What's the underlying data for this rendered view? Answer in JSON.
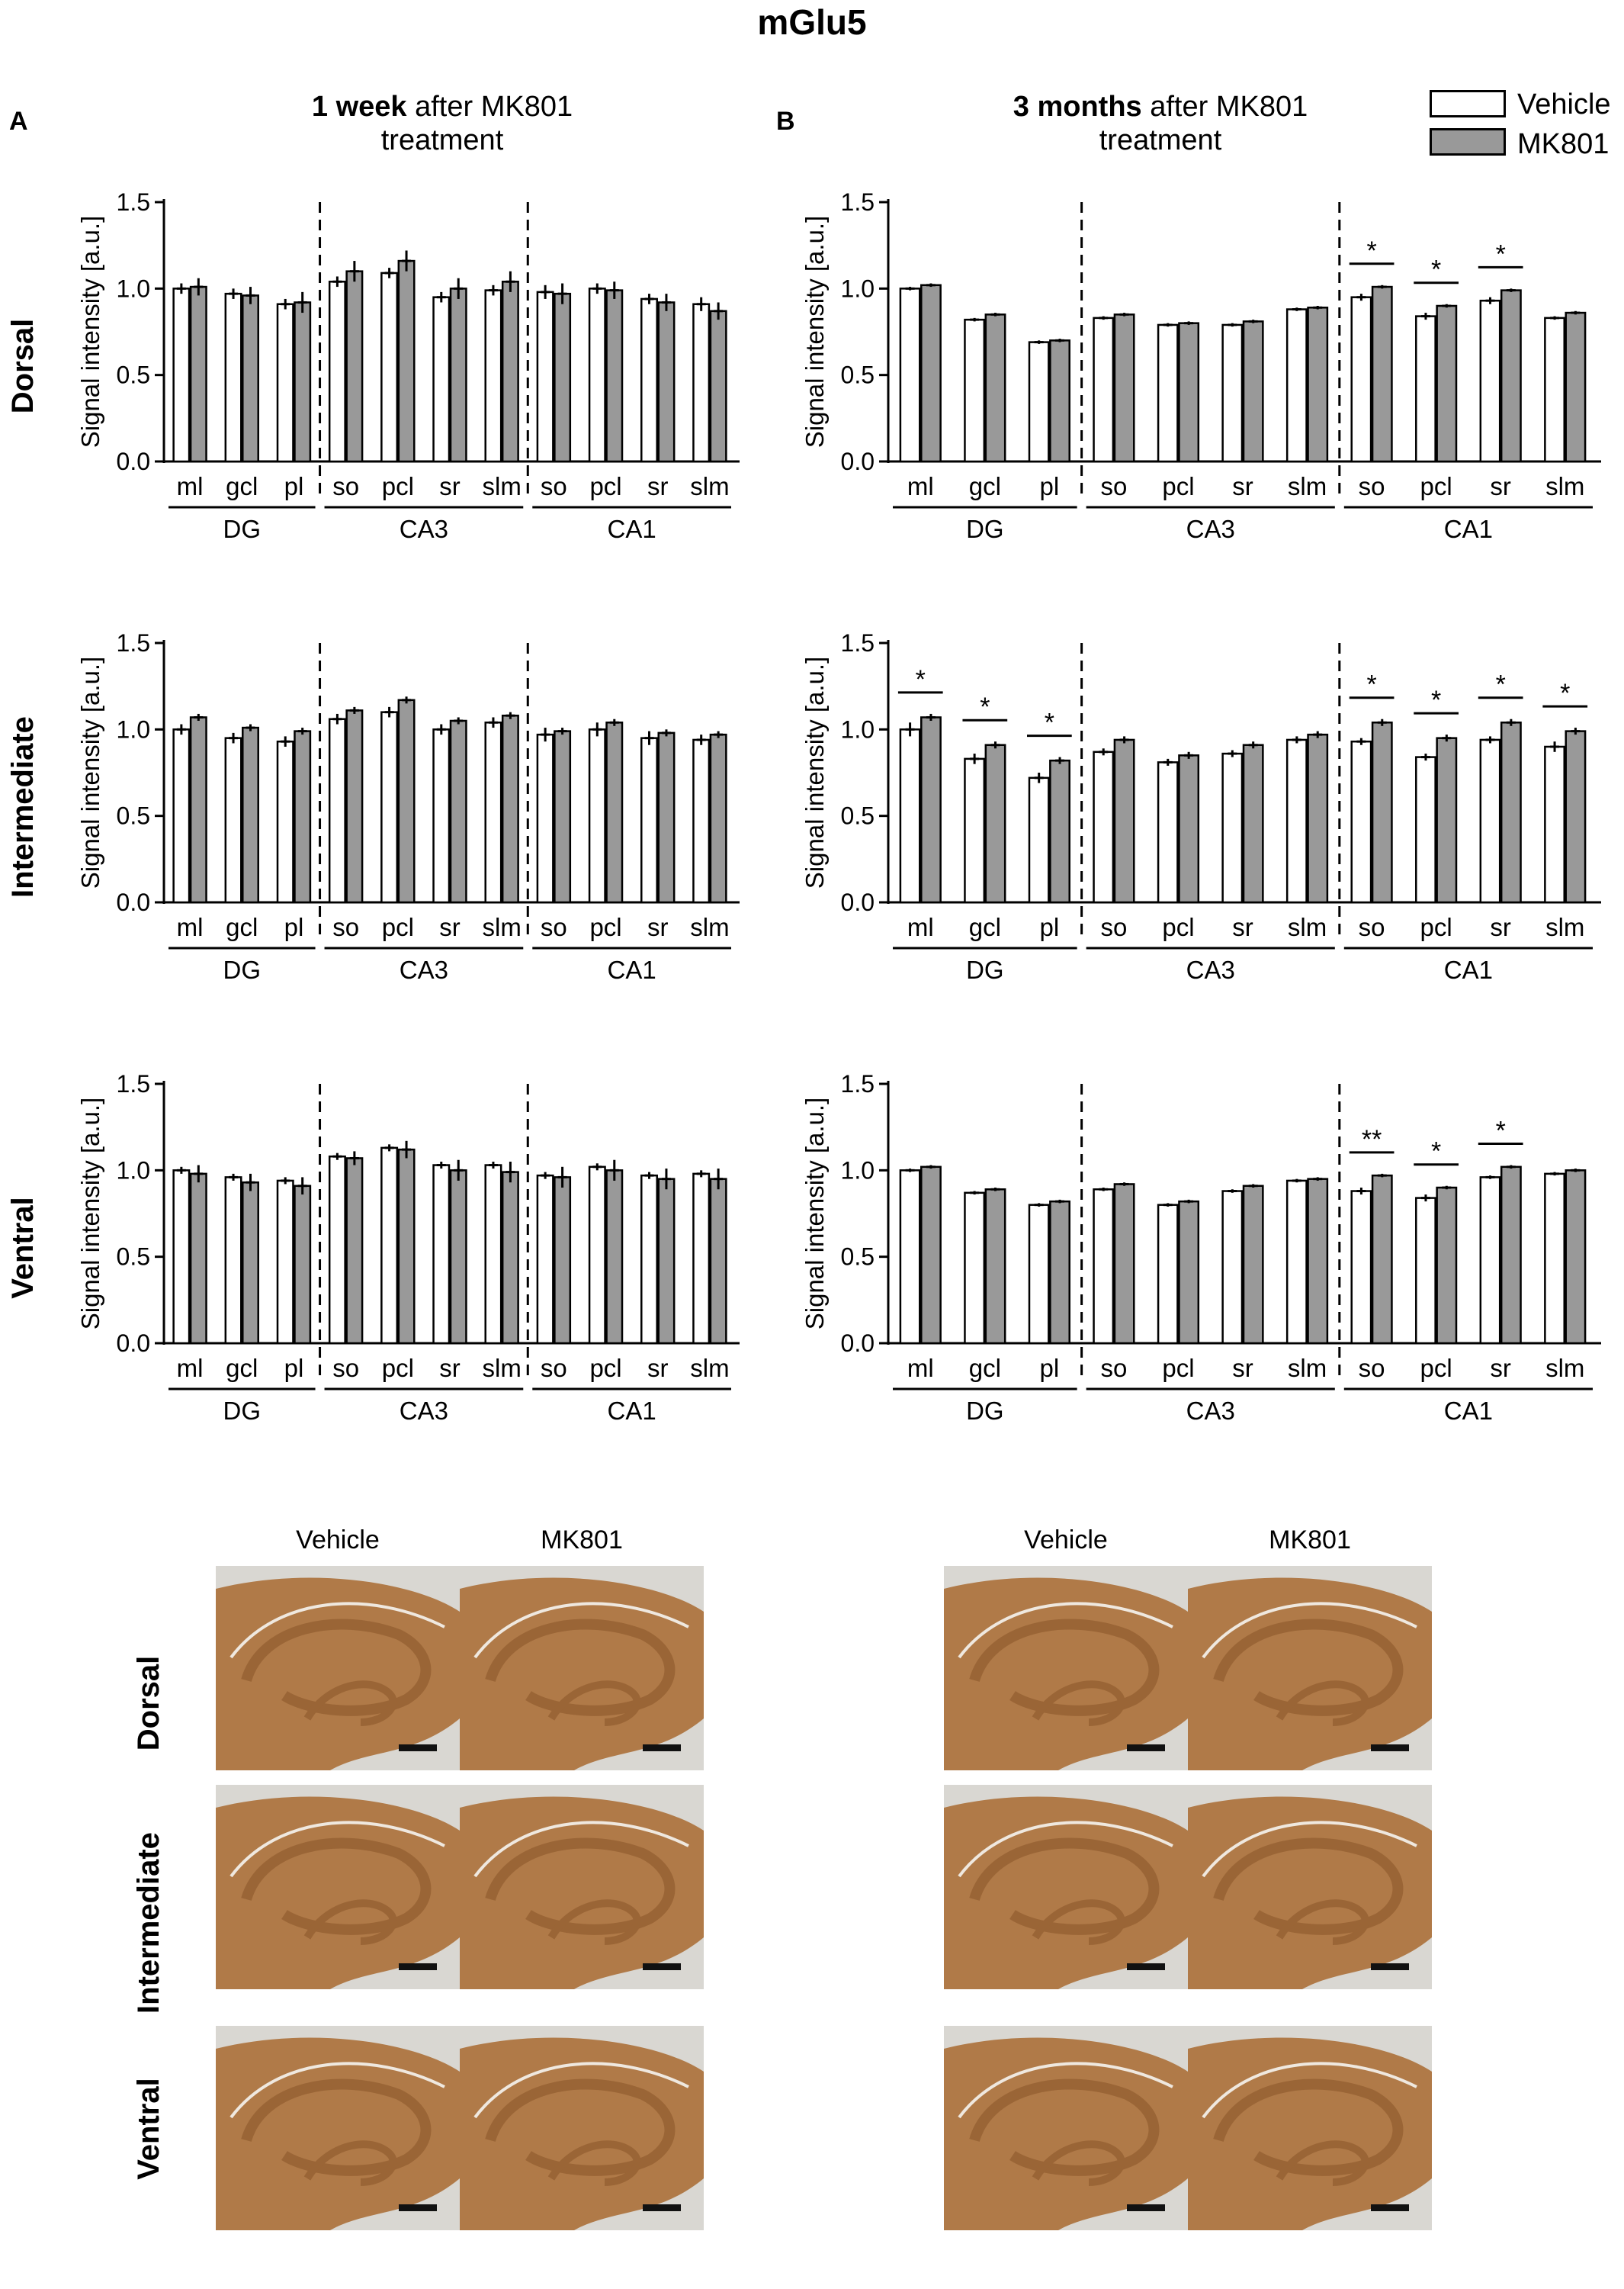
{
  "figure": {
    "title": "mGlu5",
    "panels": [
      {
        "letter": "A",
        "title_bold": "1 week",
        "title_rest": " after MK801",
        "title_line2": "treatment"
      },
      {
        "letter": "B",
        "title_bold": "3 months",
        "title_rest": " after MK801",
        "title_line2": "treatment"
      }
    ],
    "legend": {
      "vehicle": "Vehicle",
      "mk801": "MK801"
    },
    "row_labels": [
      "Dorsal",
      "Intermediate",
      "Ventral"
    ],
    "micrograph_headers": [
      "Vehicle",
      "MK801"
    ]
  },
  "colors": {
    "vehicle": "#ffffff",
    "mk801": "#999999",
    "axis": "#000000",
    "tissue": "#b07a48",
    "tissue_dark": "#9a6536",
    "background_slide": "#d9d7d2"
  },
  "chart_data": [
    {
      "type": "bar",
      "panel": "A",
      "region": "Dorsal",
      "ylabel": "Signal intensity [a.u.]",
      "ylim": [
        0,
        1.5
      ],
      "yticks": [
        "0.0",
        "0.5",
        "1.0",
        "1.5"
      ],
      "categories": [
        "ml",
        "gcl",
        "pl",
        "so",
        "pcl",
        "sr",
        "slm",
        "so",
        "pcl",
        "sr",
        "slm"
      ],
      "groups": [
        {
          "name": "DG",
          "start": 0,
          "end": 2
        },
        {
          "name": "CA3",
          "start": 3,
          "end": 6
        },
        {
          "name": "CA1",
          "start": 7,
          "end": 10
        }
      ],
      "series": [
        {
          "name": "Vehicle",
          "values": [
            1.0,
            0.97,
            0.91,
            1.04,
            1.09,
            0.95,
            0.99,
            0.98,
            1.0,
            0.94,
            0.91
          ],
          "errors": [
            0.03,
            0.03,
            0.03,
            0.03,
            0.03,
            0.03,
            0.03,
            0.04,
            0.03,
            0.03,
            0.04
          ]
        },
        {
          "name": "MK801",
          "values": [
            1.01,
            0.96,
            0.92,
            1.1,
            1.16,
            1.0,
            1.04,
            0.97,
            0.99,
            0.92,
            0.87
          ],
          "errors": [
            0.05,
            0.05,
            0.06,
            0.06,
            0.06,
            0.06,
            0.06,
            0.06,
            0.05,
            0.05,
            0.05
          ]
        }
      ],
      "significance": []
    },
    {
      "type": "bar",
      "panel": "B",
      "region": "Dorsal",
      "ylabel": "Signal intensity [a.u.]",
      "ylim": [
        0,
        1.5
      ],
      "yticks": [
        "0.0",
        "0.5",
        "1.0",
        "1.5"
      ],
      "categories": [
        "ml",
        "gcl",
        "pl",
        "so",
        "pcl",
        "sr",
        "slm",
        "so",
        "pcl",
        "sr",
        "slm"
      ],
      "groups": [
        {
          "name": "DG",
          "start": 0,
          "end": 2
        },
        {
          "name": "CA3",
          "start": 3,
          "end": 6
        },
        {
          "name": "CA1",
          "start": 7,
          "end": 10
        }
      ],
      "series": [
        {
          "name": "Vehicle",
          "values": [
            1.0,
            0.82,
            0.69,
            0.83,
            0.79,
            0.79,
            0.88,
            0.95,
            0.84,
            0.93,
            0.83
          ],
          "errors": [
            0.01,
            0.01,
            0.01,
            0.01,
            0.01,
            0.01,
            0.01,
            0.02,
            0.02,
            0.02,
            0.01
          ]
        },
        {
          "name": "MK801",
          "values": [
            1.02,
            0.85,
            0.7,
            0.85,
            0.8,
            0.81,
            0.89,
            1.01,
            0.9,
            0.99,
            0.86
          ],
          "errors": [
            0.01,
            0.01,
            0.01,
            0.01,
            0.01,
            0.01,
            0.01,
            0.01,
            0.01,
            0.01,
            0.01
          ]
        }
      ],
      "significance": [
        {
          "index": 7,
          "label": "*"
        },
        {
          "index": 8,
          "label": "*"
        },
        {
          "index": 9,
          "label": "*"
        }
      ]
    },
    {
      "type": "bar",
      "panel": "A",
      "region": "Intermediate",
      "ylabel": "Signal intensity [a.u.]",
      "ylim": [
        0,
        1.5
      ],
      "yticks": [
        "0.0",
        "0.5",
        "1.0",
        "1.5"
      ],
      "categories": [
        "ml",
        "gcl",
        "pl",
        "so",
        "pcl",
        "sr",
        "slm",
        "so",
        "pcl",
        "sr",
        "slm"
      ],
      "groups": [
        {
          "name": "DG",
          "start": 0,
          "end": 2
        },
        {
          "name": "CA3",
          "start": 3,
          "end": 6
        },
        {
          "name": "CA1",
          "start": 7,
          "end": 10
        }
      ],
      "series": [
        {
          "name": "Vehicle",
          "values": [
            1.0,
            0.95,
            0.93,
            1.06,
            1.1,
            1.0,
            1.04,
            0.97,
            1.0,
            0.95,
            0.94
          ],
          "errors": [
            0.03,
            0.03,
            0.03,
            0.03,
            0.03,
            0.03,
            0.03,
            0.04,
            0.04,
            0.04,
            0.03
          ]
        },
        {
          "name": "MK801",
          "values": [
            1.07,
            1.01,
            0.99,
            1.11,
            1.17,
            1.05,
            1.08,
            0.99,
            1.04,
            0.98,
            0.97
          ],
          "errors": [
            0.02,
            0.02,
            0.02,
            0.02,
            0.02,
            0.02,
            0.02,
            0.02,
            0.02,
            0.02,
            0.02
          ]
        }
      ],
      "significance": []
    },
    {
      "type": "bar",
      "panel": "B",
      "region": "Intermediate",
      "ylabel": "Signal intensity [a.u.]",
      "ylim": [
        0,
        1.5
      ],
      "yticks": [
        "0.0",
        "0.5",
        "1.0",
        "1.5"
      ],
      "categories": [
        "ml",
        "gcl",
        "pl",
        "so",
        "pcl",
        "sr",
        "slm",
        "so",
        "pcl",
        "sr",
        "slm"
      ],
      "groups": [
        {
          "name": "DG",
          "start": 0,
          "end": 2
        },
        {
          "name": "CA3",
          "start": 3,
          "end": 6
        },
        {
          "name": "CA1",
          "start": 7,
          "end": 10
        }
      ],
      "series": [
        {
          "name": "Vehicle",
          "values": [
            1.0,
            0.83,
            0.72,
            0.87,
            0.81,
            0.86,
            0.94,
            0.93,
            0.84,
            0.94,
            0.9
          ],
          "errors": [
            0.04,
            0.03,
            0.03,
            0.02,
            0.02,
            0.02,
            0.02,
            0.02,
            0.02,
            0.02,
            0.03
          ]
        },
        {
          "name": "MK801",
          "values": [
            1.07,
            0.91,
            0.82,
            0.94,
            0.85,
            0.91,
            0.97,
            1.04,
            0.95,
            1.04,
            0.99
          ],
          "errors": [
            0.02,
            0.02,
            0.02,
            0.02,
            0.02,
            0.02,
            0.02,
            0.02,
            0.02,
            0.02,
            0.02
          ]
        }
      ],
      "significance": [
        {
          "index": 0,
          "label": "*"
        },
        {
          "index": 1,
          "label": "*"
        },
        {
          "index": 2,
          "label": "*"
        },
        {
          "index": 7,
          "label": "*"
        },
        {
          "index": 8,
          "label": "*"
        },
        {
          "index": 9,
          "label": "*"
        },
        {
          "index": 10,
          "label": "*"
        }
      ]
    },
    {
      "type": "bar",
      "panel": "A",
      "region": "Ventral",
      "ylabel": "Signal intensity [a.u.]",
      "ylim": [
        0,
        1.5
      ],
      "yticks": [
        "0.0",
        "0.5",
        "1.0",
        "1.5"
      ],
      "categories": [
        "ml",
        "gcl",
        "pl",
        "so",
        "pcl",
        "sr",
        "slm",
        "so",
        "pcl",
        "sr",
        "slm"
      ],
      "groups": [
        {
          "name": "DG",
          "start": 0,
          "end": 2
        },
        {
          "name": "CA3",
          "start": 3,
          "end": 6
        },
        {
          "name": "CA1",
          "start": 7,
          "end": 10
        }
      ],
      "series": [
        {
          "name": "Vehicle",
          "values": [
            1.0,
            0.96,
            0.94,
            1.08,
            1.13,
            1.03,
            1.03,
            0.97,
            1.02,
            0.97,
            0.98
          ],
          "errors": [
            0.02,
            0.02,
            0.02,
            0.02,
            0.02,
            0.02,
            0.02,
            0.02,
            0.02,
            0.02,
            0.02
          ]
        },
        {
          "name": "MK801",
          "values": [
            0.98,
            0.93,
            0.91,
            1.07,
            1.12,
            1.0,
            0.99,
            0.96,
            1.0,
            0.95,
            0.95
          ],
          "errors": [
            0.05,
            0.05,
            0.05,
            0.04,
            0.05,
            0.06,
            0.06,
            0.06,
            0.06,
            0.06,
            0.06
          ]
        }
      ],
      "significance": []
    },
    {
      "type": "bar",
      "panel": "B",
      "region": "Ventral",
      "ylabel": "Signal intensity [a.u.]",
      "ylim": [
        0,
        1.5
      ],
      "yticks": [
        "0.0",
        "0.5",
        "1.0",
        "1.5"
      ],
      "categories": [
        "ml",
        "gcl",
        "pl",
        "so",
        "pcl",
        "sr",
        "slm",
        "so",
        "pcl",
        "sr",
        "slm"
      ],
      "groups": [
        {
          "name": "DG",
          "start": 0,
          "end": 2
        },
        {
          "name": "CA3",
          "start": 3,
          "end": 6
        },
        {
          "name": "CA1",
          "start": 7,
          "end": 10
        }
      ],
      "series": [
        {
          "name": "Vehicle",
          "values": [
            1.0,
            0.87,
            0.8,
            0.89,
            0.8,
            0.88,
            0.94,
            0.88,
            0.84,
            0.96,
            0.98
          ],
          "errors": [
            0.01,
            0.01,
            0.01,
            0.01,
            0.01,
            0.01,
            0.01,
            0.02,
            0.02,
            0.01,
            0.01
          ]
        },
        {
          "name": "MK801",
          "values": [
            1.02,
            0.89,
            0.82,
            0.92,
            0.82,
            0.91,
            0.95,
            0.97,
            0.9,
            1.02,
            1.0
          ],
          "errors": [
            0.01,
            0.01,
            0.01,
            0.01,
            0.01,
            0.01,
            0.01,
            0.01,
            0.01,
            0.01,
            0.01
          ]
        }
      ],
      "significance": [
        {
          "index": 7,
          "label": "**"
        },
        {
          "index": 8,
          "label": "*"
        },
        {
          "index": 9,
          "label": "*"
        }
      ]
    }
  ]
}
